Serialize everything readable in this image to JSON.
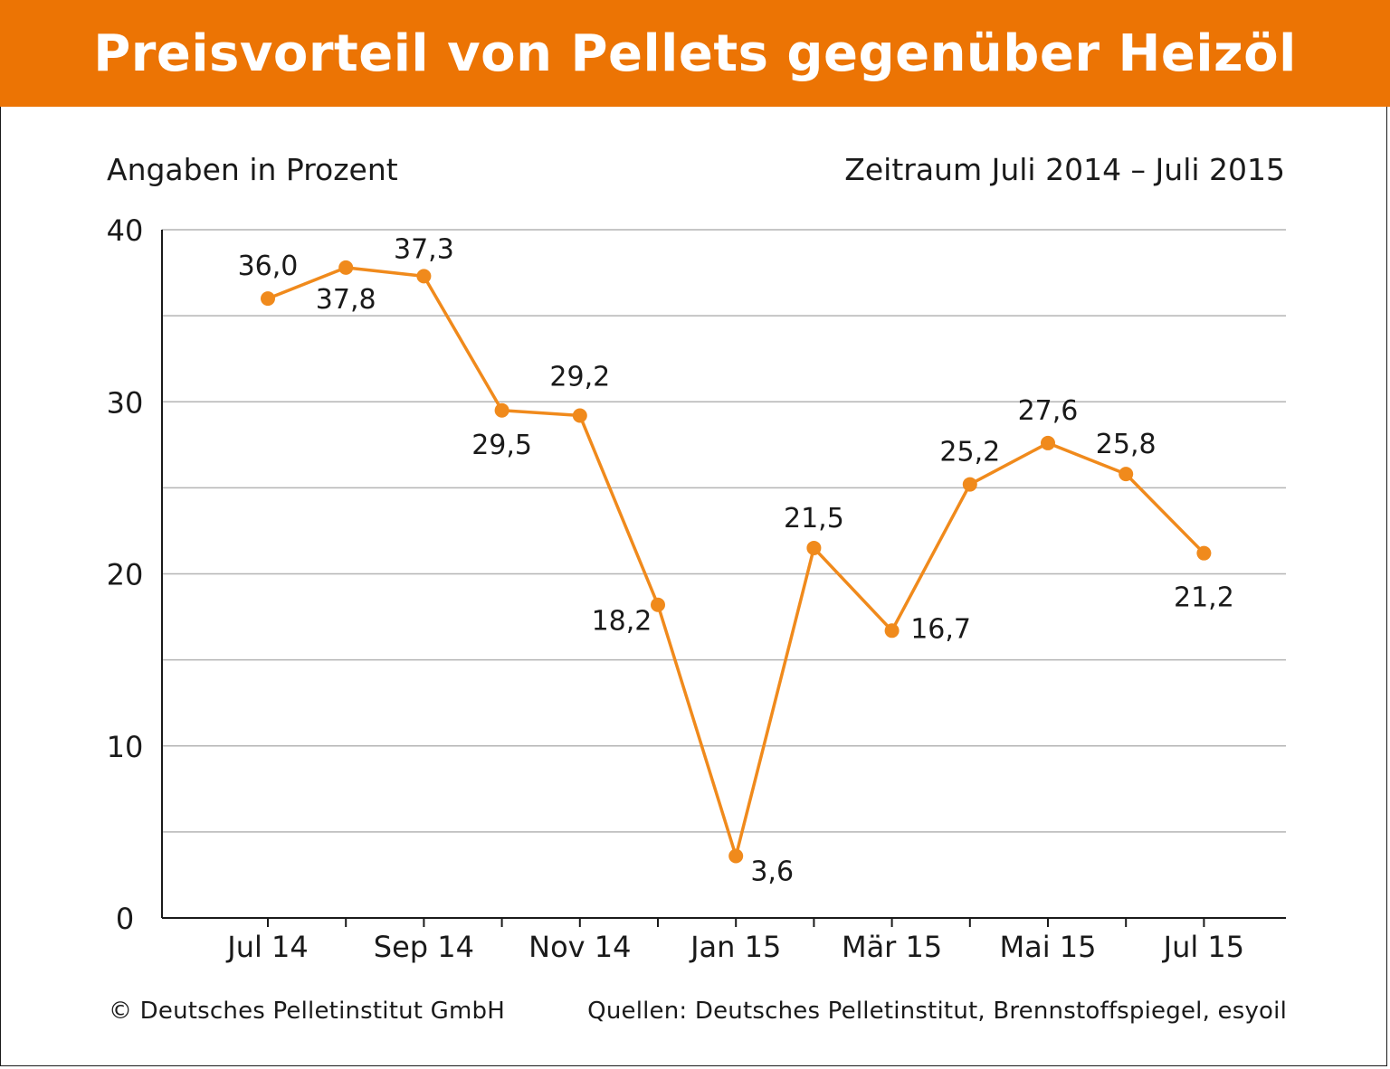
{
  "colors": {
    "accent": "#ec7404",
    "line": "#f08a1c",
    "grid": "#b4b4b4",
    "text": "#1a1a1a"
  },
  "header": {
    "title": "Preisvorteil von Pellets gegenüber Heizöl",
    "unit_note": "Angaben in Prozent",
    "period_note": "Zeitraum Juli 2014 – Juli 2015"
  },
  "footer": {
    "copyright": "© Deutsches Pelletinstitut GmbH",
    "sources": "Quellen: Deutsches Pelletinstitut, Brennstoffspiegel, esyoil"
  },
  "chart_data": {
    "type": "line",
    "title": "Preisvorteil von Pellets gegenüber Heizöl",
    "ylabel": "Angaben in Prozent",
    "x": [
      "Jul 14",
      "Aug 14",
      "Sep 14",
      "Okt 14",
      "Nov 14",
      "Dez 14",
      "Jan 15",
      "Feb 15",
      "Mär 15",
      "Apr 15",
      "Mai 15",
      "Jun 15",
      "Jul 15"
    ],
    "x_tick_labels": [
      "Jul 14",
      "",
      "Sep 14",
      "",
      "Nov 14",
      "",
      "Jan 15",
      "",
      "Mär 15",
      "",
      "Mai 15",
      "",
      "Jul 15"
    ],
    "series": [
      {
        "values": [
          36.0,
          37.8,
          37.3,
          29.5,
          29.2,
          18.2,
          3.6,
          21.5,
          16.7,
          25.2,
          27.6,
          25.8,
          21.2
        ],
        "labels": [
          "36,0",
          "37,8",
          "37,3",
          "29,5",
          "29,2",
          "18,2",
          "3,6",
          "21,5",
          "16,7",
          "25,2",
          "27,6",
          "25,8",
          "21,2"
        ]
      }
    ],
    "ylim": [
      0,
      40
    ],
    "y_ticks": [
      0,
      10,
      20,
      30,
      40
    ],
    "y_tick_labels": [
      "0",
      "10",
      "20",
      "30",
      "40"
    ],
    "grid": true,
    "legend": "none"
  }
}
